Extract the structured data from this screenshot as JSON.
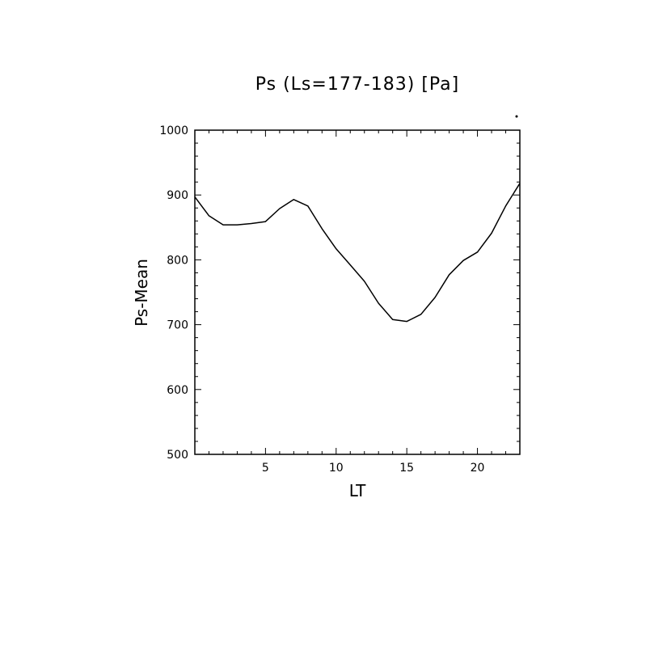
{
  "chart_data": {
    "type": "line",
    "title": "Ps (Ls=177-183) [Pa]",
    "xlabel": "LT",
    "ylabel": "Ps-Mean",
    "xlim": [
      0,
      23
    ],
    "ylim": [
      500,
      1000
    ],
    "x_ticks": [
      5,
      10,
      15,
      20
    ],
    "x_tick_labels": [
      "5",
      "10",
      "15",
      "20"
    ],
    "y_ticks": [
      500,
      600,
      700,
      800,
      900,
      1000
    ],
    "y_tick_labels": [
      "500",
      "600",
      "700",
      "800",
      "900",
      "1000"
    ],
    "grid": false,
    "series": [
      {
        "x": [
          0,
          1,
          2,
          3,
          4,
          5,
          6,
          7,
          8,
          9,
          10,
          11,
          12,
          13,
          14,
          15,
          16,
          17,
          18,
          19,
          20,
          21,
          22,
          23
        ],
        "values": [
          897,
          868,
          854,
          854,
          856,
          859,
          879,
          893,
          883,
          848,
          817,
          792,
          767,
          733,
          708,
          705,
          716,
          742,
          777,
          799,
          812,
          841,
          883,
          918
        ]
      }
    ]
  }
}
